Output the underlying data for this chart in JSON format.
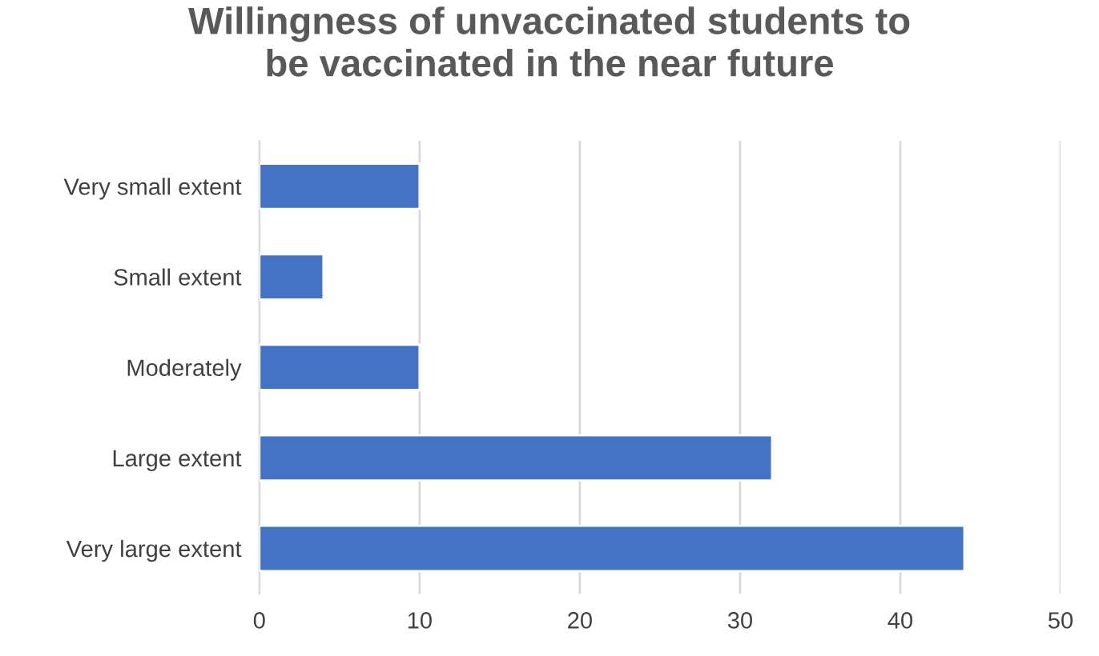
{
  "chart_data": {
    "type": "bar",
    "orientation": "horizontal",
    "title": "Willingness of unvaccinated students to\nbe vaccinated in the near future",
    "categories": [
      "Very small extent",
      "Small extent",
      "Moderately",
      "Large extent",
      "Very large extent"
    ],
    "values": [
      10,
      4,
      10,
      32,
      44
    ],
    "color": "#4472c4",
    "xlim": [
      0,
      50
    ],
    "xticks": [
      0,
      10,
      20,
      30,
      40,
      50
    ],
    "grid": "x",
    "legend": false
  }
}
